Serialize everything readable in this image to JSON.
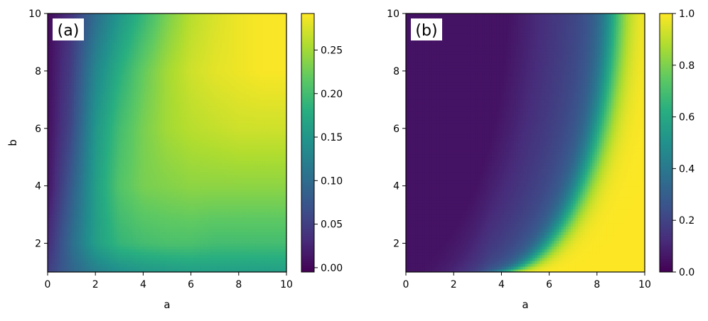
{
  "chart_data": [
    {
      "type": "heatmap",
      "panel_label": "(a)",
      "xlabel": "a",
      "ylabel": "b",
      "xlim": [
        0,
        10
      ],
      "ylim": [
        1,
        10
      ],
      "xticks": [
        0,
        2,
        4,
        6,
        8,
        10
      ],
      "yticks": [
        2,
        4,
        6,
        8,
        10
      ],
      "colormap": "viridis",
      "clim": [
        -0.005,
        0.292
      ],
      "colorbar_ticks": [
        "0.00",
        "0.05",
        "0.10",
        "0.15",
        "0.20",
        "0.25"
      ],
      "colorbar_tick_values": [
        0,
        0.05,
        0.1,
        0.15,
        0.2,
        0.25
      ],
      "grid_x": [
        0,
        1,
        2,
        3,
        4,
        5,
        6,
        7,
        8,
        9,
        10
      ],
      "grid_y": [
        1,
        2,
        4,
        6,
        8,
        10
      ],
      "values": [
        [
          0.05,
          0.09,
          0.12,
          0.14,
          0.15,
          0.155,
          0.16,
          0.16,
          0.16,
          0.16,
          0.16
        ],
        [
          0.03,
          0.1,
          0.16,
          0.19,
          0.2,
          0.205,
          0.205,
          0.2,
          0.2,
          0.2,
          0.2
        ],
        [
          0.01,
          0.08,
          0.16,
          0.21,
          0.23,
          0.235,
          0.24,
          0.24,
          0.24,
          0.24,
          0.24
        ],
        [
          0.005,
          0.06,
          0.15,
          0.2,
          0.23,
          0.25,
          0.26,
          0.265,
          0.27,
          0.27,
          0.27
        ],
        [
          0.003,
          0.05,
          0.13,
          0.18,
          0.22,
          0.25,
          0.27,
          0.28,
          0.285,
          0.29,
          0.29
        ],
        [
          0.002,
          0.04,
          0.1,
          0.15,
          0.19,
          0.23,
          0.26,
          0.275,
          0.285,
          0.29,
          0.29
        ]
      ]
    },
    {
      "type": "heatmap",
      "panel_label": "(b)",
      "xlabel": "a",
      "ylabel": "",
      "xlim": [
        0,
        10
      ],
      "ylim": [
        1,
        10
      ],
      "xticks": [
        0,
        2,
        4,
        6,
        8,
        10
      ],
      "yticks": [
        2,
        4,
        6,
        8,
        10
      ],
      "colormap": "viridis",
      "clim": [
        0,
        1
      ],
      "colorbar_ticks": [
        "0.0",
        "0.2",
        "0.4",
        "0.6",
        "0.8",
        "1.0"
      ],
      "colorbar_tick_values": [
        0,
        0.2,
        0.4,
        0.6,
        0.8,
        1.0
      ],
      "boundary_a": 8.8,
      "boundary_b_min": 1.0,
      "boundary_b_max": 11.0,
      "boundary_a_at_bottom": 3.9,
      "low_value": 0.05,
      "high_value": 1.0
    }
  ]
}
